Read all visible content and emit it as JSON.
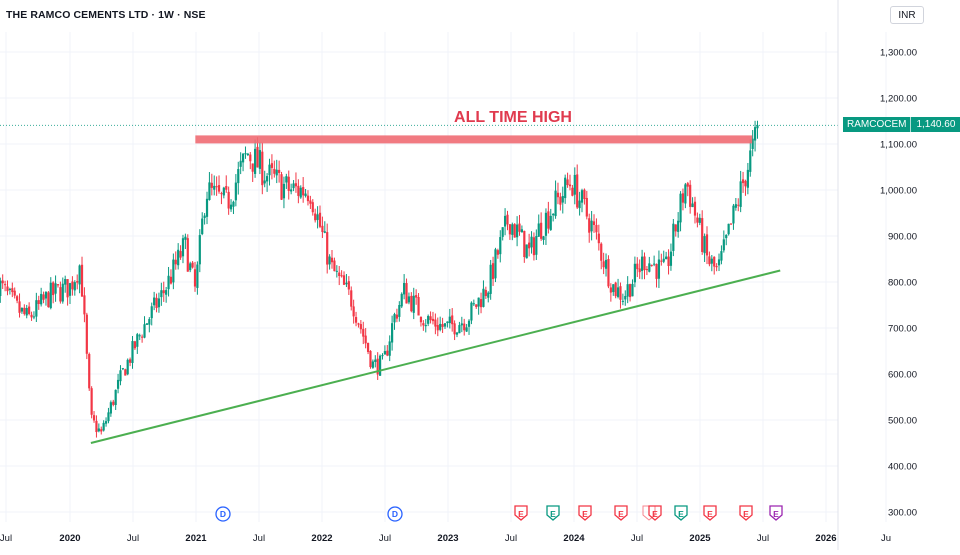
{
  "header": {
    "title": "THE RAMCO CEMENTS LTD · 1W · NSE",
    "currency_button": "INR"
  },
  "price_badge": {
    "symbol": "RAMCOCEM",
    "value": "1,140.60"
  },
  "annotation": {
    "text": "ALL TIME HIGH",
    "color": "#e03a4e"
  },
  "colors": {
    "up": "#089981",
    "down": "#f23645",
    "resistance": "#ef6b73",
    "support": "#4caf50",
    "grid": "#f0f3fa",
    "axis_text": "#131722"
  },
  "markers": [
    {
      "type": "dividend",
      "label": "D",
      "color": "#2962ff"
    },
    {
      "type": "dividend",
      "label": "D",
      "color": "#2962ff"
    },
    {
      "type": "earnings",
      "label": "E",
      "color": "#f23645"
    },
    {
      "type": "earnings",
      "label": "E",
      "color": "#089981"
    },
    {
      "type": "earnings",
      "label": "E",
      "color": "#f23645"
    },
    {
      "type": "earnings",
      "label": "E",
      "color": "#f23645"
    },
    {
      "type": "earnings",
      "label": "E",
      "color": "#f23645"
    },
    {
      "type": "earnings",
      "label": "E",
      "color": "#089981"
    },
    {
      "type": "earnings",
      "label": "E",
      "color": "#f23645"
    },
    {
      "type": "earnings",
      "label": "E",
      "color": "#f23645"
    },
    {
      "type": "earnings",
      "label": "E",
      "color": "#9c27b0"
    }
  ],
  "chart_data": {
    "type": "candlestick",
    "title": "THE RAMCO CEMENTS LTD · 1W · NSE",
    "interval": "1W",
    "currency": "INR",
    "ylim": [
      300,
      1300
    ],
    "y_ticks": [
      300,
      400,
      500,
      600,
      700,
      800,
      900,
      1000,
      1100,
      1200,
      1300
    ],
    "y_tick_labels": [
      "300.00",
      "400.00",
      "500.00",
      "600.00",
      "700.00",
      "800.00",
      "900.00",
      "1,000.00",
      "1,100.00",
      "1,200.00",
      "1,300.00"
    ],
    "x_tick_labels": [
      "Jul",
      "2020",
      "Jul",
      "2021",
      "Jul",
      "2022",
      "Jul",
      "2023",
      "Jul",
      "2024",
      "Jul",
      "2025",
      "Jul",
      "2026",
      "Ju"
    ],
    "last_price": 1140.6,
    "resistance_level": 1110,
    "support_line": {
      "start": [
        "2020-03",
        450
      ],
      "end": [
        "2025-09",
        825
      ]
    },
    "price_path": [
      [
        "2019-06",
        800
      ],
      [
        "2019-08",
        740
      ],
      [
        "2019-09",
        720
      ],
      [
        "2019-11",
        770
      ],
      [
        "2020-01",
        790
      ],
      [
        "2020-02",
        840
      ],
      [
        "2020-03",
        500
      ],
      [
        "2020-04",
        470
      ],
      [
        "2020-06",
        600
      ],
      [
        "2020-08",
        700
      ],
      [
        "2020-10",
        780
      ],
      [
        "2020-12",
        880
      ],
      [
        "2021-01",
        780
      ],
      [
        "2021-02",
        1000
      ],
      [
        "2021-04",
        970
      ],
      [
        "2021-06",
        1080
      ],
      [
        "2021-08",
        1030
      ],
      [
        "2021-10",
        1000
      ],
      [
        "2021-12",
        1000
      ],
      [
        "2022-02",
        830
      ],
      [
        "2022-04",
        760
      ],
      [
        "2022-06",
        620
      ],
      [
        "2022-07",
        620
      ],
      [
        "2022-08",
        720
      ],
      [
        "2022-09",
        780
      ],
      [
        "2022-11",
        720
      ],
      [
        "2023-01",
        700
      ],
      [
        "2023-03",
        720
      ],
      [
        "2023-05",
        790
      ],
      [
        "2023-07",
        940
      ],
      [
        "2023-09",
        860
      ],
      [
        "2023-10",
        920
      ],
      [
        "2024-01",
        1020
      ],
      [
        "2024-03",
        920
      ],
      [
        "2024-05",
        790
      ],
      [
        "2024-06",
        770
      ],
      [
        "2024-08",
        850
      ],
      [
        "2024-10",
        820
      ],
      [
        "2024-12",
        1020
      ],
      [
        "2025-02",
        850
      ],
      [
        "2025-03",
        820
      ],
      [
        "2025-05",
        980
      ],
      [
        "2025-06",
        1060
      ],
      [
        "2025-07",
        1140
      ]
    ]
  }
}
